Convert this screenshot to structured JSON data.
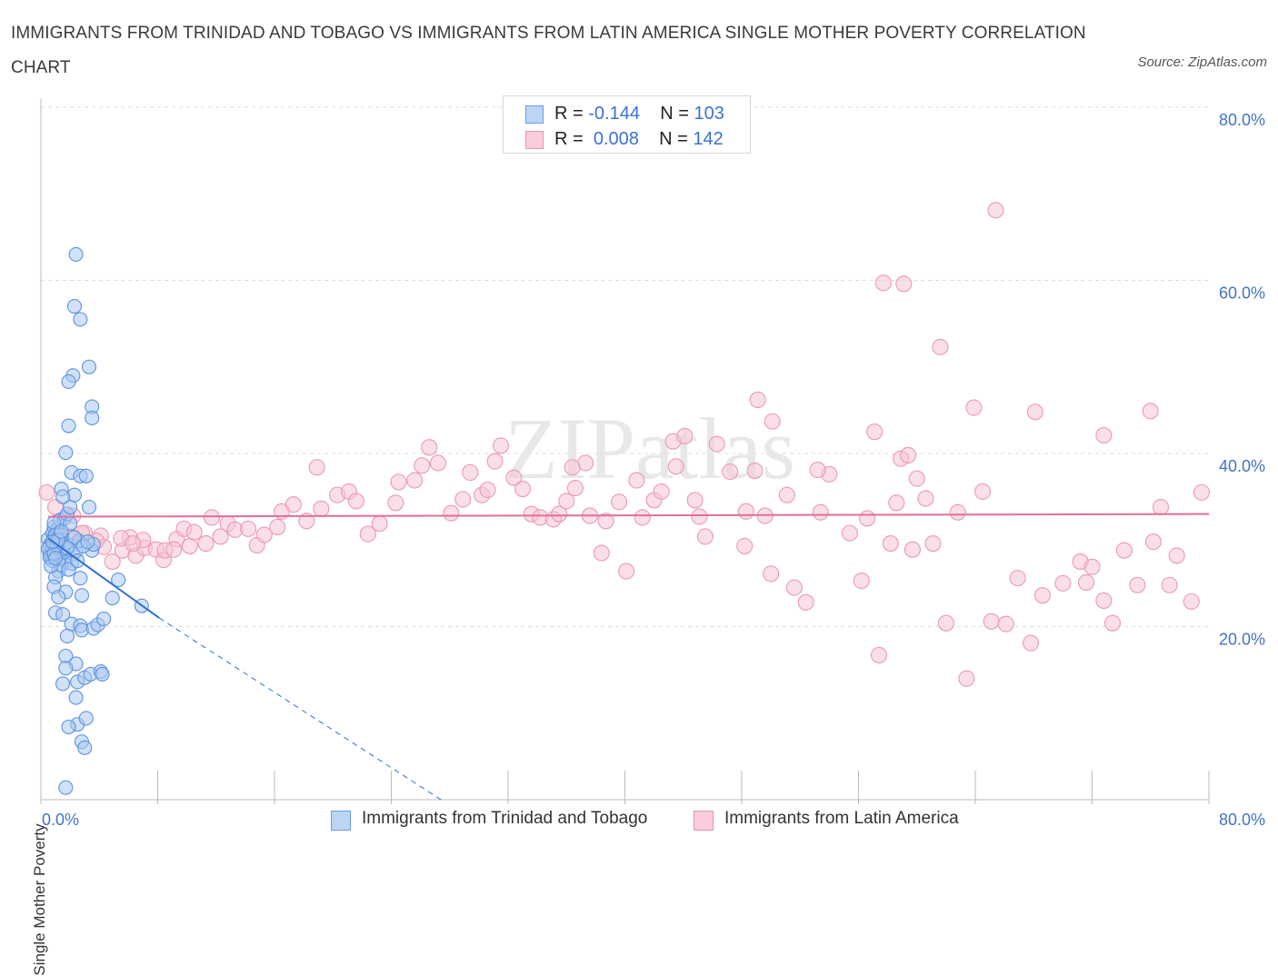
{
  "title": "IMMIGRANTS FROM TRINIDAD AND TOBAGO VS IMMIGRANTS FROM LATIN AMERICA SINGLE MOTHER POVERTY CORRELATION CHART",
  "source": "Source: ZipAtlas.com",
  "watermark": "ZIPatlas",
  "legend": {
    "rows": [
      {
        "r_label": "R =",
        "r_value": "-0.144",
        "n_label": "N =",
        "n_value": "103",
        "color": "#9dc3f5",
        "border": "#6a9de0"
      },
      {
        "r_label": "R =",
        "r_value": "0.008",
        "n_label": "N =",
        "n_value": "142",
        "color": "#f7bdd0",
        "border": "#e894b0"
      }
    ]
  },
  "colors": {
    "blue_fill": "#a9c9f3",
    "blue_stroke": "#5d93dc",
    "blue_line": "#2f6fd0",
    "pink_fill": "#f6c4d4",
    "pink_stroke": "#e99ab5",
    "pink_line": "#e0709a",
    "tick_text": "#4472c4",
    "grid": "#dddddd"
  },
  "chart_data": {
    "type": "scatter",
    "xlabel": "",
    "ylabel": "Single Mother Poverty",
    "xlim": [
      0,
      80
    ],
    "ylim": [
      0,
      80
    ],
    "x_tick_labels": [
      "0.0%",
      "80.0%"
    ],
    "y_ticks": [
      20,
      40,
      60,
      80
    ],
    "y_tick_labels": [
      "20.0%",
      "40.0%",
      "60.0%",
      "80.0%"
    ],
    "grid": true,
    "legend_position": "bottom",
    "series": [
      {
        "name": "Immigrants from Trinidad and Tobago",
        "color": "#a9c9f3",
        "trend": {
          "x0": 0.5,
          "y0": 30.2,
          "x1": 8.1,
          "y1": 21.0,
          "dashed_to_x": 27.4,
          "dashed_to_y": 0.0
        },
        "points": [
          [
            0.5,
            30.1
          ],
          [
            0.6,
            28.5
          ],
          [
            0.7,
            29.6
          ],
          [
            0.8,
            30.8
          ],
          [
            0.9,
            31.5
          ],
          [
            1.0,
            29.0
          ],
          [
            1.1,
            28.2
          ],
          [
            1.2,
            27.8
          ],
          [
            0.6,
            29.3
          ],
          [
            0.8,
            28.8
          ],
          [
            0.9,
            30.3
          ],
          [
            1.3,
            29.7
          ],
          [
            1.4,
            28.6
          ],
          [
            1.5,
            30.0
          ],
          [
            1.6,
            28.9
          ],
          [
            1.7,
            27.5
          ],
          [
            2.0,
            29.4
          ],
          [
            2.2,
            28.4
          ],
          [
            1.1,
            31.2
          ],
          [
            1.3,
            32.3
          ],
          [
            1.6,
            32.5
          ],
          [
            1.8,
            33.0
          ],
          [
            2.0,
            33.8
          ],
          [
            1.2,
            26.4
          ],
          [
            1.0,
            25.7
          ],
          [
            0.9,
            24.6
          ],
          [
            1.4,
            27.1
          ],
          [
            2.1,
            27.3
          ],
          [
            2.4,
            28.7
          ],
          [
            2.6,
            29.9
          ],
          [
            2.3,
            30.3
          ],
          [
            1.9,
            26.6
          ],
          [
            2.5,
            27.6
          ],
          [
            3.5,
            28.8
          ],
          [
            3.6,
            29.5
          ],
          [
            1.7,
            24.0
          ],
          [
            2.7,
            25.6
          ],
          [
            2.8,
            23.6
          ],
          [
            1.2,
            23.4
          ],
          [
            1.0,
            21.6
          ],
          [
            1.5,
            21.4
          ],
          [
            2.1,
            20.3
          ],
          [
            2.7,
            20.1
          ],
          [
            2.8,
            19.6
          ],
          [
            3.6,
            19.8
          ],
          [
            3.9,
            20.2
          ],
          [
            4.3,
            20.9
          ],
          [
            4.9,
            23.3
          ],
          [
            5.3,
            25.4
          ],
          [
            6.9,
            22.4
          ],
          [
            1.8,
            18.9
          ],
          [
            1.7,
            16.6
          ],
          [
            2.4,
            15.7
          ],
          [
            1.7,
            15.2
          ],
          [
            2.5,
            13.6
          ],
          [
            3.0,
            14.1
          ],
          [
            3.4,
            14.5
          ],
          [
            4.1,
            14.8
          ],
          [
            4.2,
            14.5
          ],
          [
            1.5,
            13.4
          ],
          [
            2.4,
            11.8
          ],
          [
            2.5,
            8.7
          ],
          [
            1.9,
            8.4
          ],
          [
            3.1,
            9.4
          ],
          [
            2.8,
            6.7
          ],
          [
            3.0,
            6.0
          ],
          [
            1.7,
            1.4
          ],
          [
            2.2,
            49.0
          ],
          [
            1.9,
            48.3
          ],
          [
            3.3,
            50.0
          ],
          [
            3.5,
            45.4
          ],
          [
            3.5,
            44.1
          ],
          [
            1.9,
            43.2
          ],
          [
            1.7,
            40.1
          ],
          [
            2.1,
            37.8
          ],
          [
            2.7,
            37.4
          ],
          [
            3.1,
            37.4
          ],
          [
            1.4,
            35.9
          ],
          [
            2.3,
            35.2
          ],
          [
            3.3,
            33.8
          ],
          [
            1.5,
            35.0
          ],
          [
            2.4,
            63.0
          ],
          [
            2.3,
            57.0
          ],
          [
            2.7,
            55.5
          ],
          [
            0.9,
            32.0
          ],
          [
            1.0,
            30.6
          ],
          [
            1.1,
            30.0
          ],
          [
            0.7,
            28.0
          ],
          [
            0.8,
            27.6
          ],
          [
            1.8,
            29.1
          ],
          [
            2.9,
            29.3
          ],
          [
            0.5,
            29.0
          ],
          [
            0.6,
            28.0
          ],
          [
            0.7,
            27.0
          ],
          [
            3.2,
            29.8
          ],
          [
            1.3,
            30.6
          ],
          [
            2.0,
            31.9
          ],
          [
            1.1,
            29.4
          ],
          [
            0.9,
            28.4
          ],
          [
            1.2,
            30.0
          ],
          [
            1.4,
            31.0
          ],
          [
            0.8,
            29.8
          ],
          [
            1.0,
            27.9
          ]
        ]
      },
      {
        "name": "Immigrants from Latin America",
        "color": "#f6c4d4",
        "trend": {
          "x0": 0.5,
          "y0": 32.7,
          "x1": 80.0,
          "y1": 33.0
        },
        "points": [
          [
            0.4,
            35.5
          ],
          [
            1.0,
            33.8
          ],
          [
            2.2,
            32.8
          ],
          [
            3.0,
            30.8
          ],
          [
            4.1,
            30.5
          ],
          [
            4.9,
            27.5
          ],
          [
            5.6,
            28.8
          ],
          [
            6.1,
            30.3
          ],
          [
            6.5,
            28.2
          ],
          [
            7.1,
            29.1
          ],
          [
            7.9,
            28.9
          ],
          [
            8.4,
            27.7
          ],
          [
            8.5,
            28.8
          ],
          [
            9.3,
            30.1
          ],
          [
            9.8,
            31.3
          ],
          [
            10.2,
            29.3
          ],
          [
            11.3,
            29.6
          ],
          [
            11.7,
            32.6
          ],
          [
            12.3,
            30.4
          ],
          [
            12.8,
            31.9
          ],
          [
            13.3,
            31.2
          ],
          [
            14.2,
            31.3
          ],
          [
            14.8,
            29.4
          ],
          [
            15.3,
            30.6
          ],
          [
            16.2,
            31.5
          ],
          [
            16.5,
            33.3
          ],
          [
            17.3,
            34.1
          ],
          [
            18.2,
            32.2
          ],
          [
            18.9,
            38.4
          ],
          [
            19.2,
            33.6
          ],
          [
            20.3,
            35.2
          ],
          [
            21.1,
            35.6
          ],
          [
            21.6,
            34.5
          ],
          [
            22.4,
            30.7
          ],
          [
            23.2,
            31.9
          ],
          [
            24.3,
            34.3
          ],
          [
            24.5,
            36.7
          ],
          [
            25.6,
            36.9
          ],
          [
            26.6,
            40.7
          ],
          [
            27.2,
            38.9
          ],
          [
            28.1,
            33.1
          ],
          [
            28.9,
            34.7
          ],
          [
            29.4,
            37.8
          ],
          [
            30.2,
            35.2
          ],
          [
            30.6,
            35.8
          ],
          [
            31.1,
            39.1
          ],
          [
            31.5,
            40.9
          ],
          [
            32.4,
            37.2
          ],
          [
            33.0,
            35.9
          ],
          [
            33.6,
            33.0
          ],
          [
            34.2,
            32.6
          ],
          [
            35.1,
            32.4
          ],
          [
            35.5,
            33.0
          ],
          [
            36.0,
            34.5
          ],
          [
            36.6,
            36.0
          ],
          [
            37.3,
            38.9
          ],
          [
            37.6,
            32.8
          ],
          [
            38.4,
            28.5
          ],
          [
            38.7,
            32.2
          ],
          [
            39.6,
            34.4
          ],
          [
            40.1,
            26.4
          ],
          [
            40.8,
            36.9
          ],
          [
            41.2,
            32.6
          ],
          [
            42.0,
            34.6
          ],
          [
            42.5,
            35.6
          ],
          [
            43.5,
            38.5
          ],
          [
            44.8,
            34.6
          ],
          [
            45.1,
            32.7
          ],
          [
            45.5,
            30.4
          ],
          [
            46.3,
            41.1
          ],
          [
            47.2,
            37.9
          ],
          [
            48.2,
            29.3
          ],
          [
            48.3,
            33.3
          ],
          [
            48.9,
            38.0
          ],
          [
            49.6,
            32.8
          ],
          [
            50.0,
            26.1
          ],
          [
            51.1,
            35.2
          ],
          [
            51.6,
            24.5
          ],
          [
            52.4,
            22.8
          ],
          [
            53.4,
            33.2
          ],
          [
            54.0,
            37.6
          ],
          [
            55.4,
            30.8
          ],
          [
            56.2,
            25.3
          ],
          [
            56.6,
            32.5
          ],
          [
            57.4,
            16.7
          ],
          [
            58.2,
            29.6
          ],
          [
            58.6,
            34.3
          ],
          [
            59.7,
            28.9
          ],
          [
            60.0,
            37.1
          ],
          [
            60.6,
            34.8
          ],
          [
            61.1,
            29.6
          ],
          [
            62.0,
            20.4
          ],
          [
            62.8,
            33.2
          ],
          [
            63.4,
            14.0
          ],
          [
            64.5,
            35.6
          ],
          [
            65.1,
            20.6
          ],
          [
            66.1,
            20.3
          ],
          [
            66.9,
            25.6
          ],
          [
            67.8,
            18.1
          ],
          [
            68.6,
            23.6
          ],
          [
            70.0,
            25.0
          ],
          [
            71.2,
            27.5
          ],
          [
            71.6,
            25.1
          ],
          [
            72.0,
            26.9
          ],
          [
            72.8,
            23.0
          ],
          [
            73.4,
            20.4
          ],
          [
            74.2,
            28.8
          ],
          [
            75.1,
            24.8
          ],
          [
            76.2,
            29.8
          ],
          [
            76.7,
            33.8
          ],
          [
            77.3,
            24.8
          ],
          [
            77.8,
            28.2
          ],
          [
            78.8,
            22.9
          ],
          [
            79.5,
            35.5
          ],
          [
            68.1,
            44.8
          ],
          [
            72.8,
            42.1
          ],
          [
            76.0,
            44.9
          ],
          [
            65.4,
            68.1
          ],
          [
            57.1,
            42.5
          ],
          [
            58.9,
            39.4
          ],
          [
            59.4,
            39.8
          ],
          [
            49.1,
            46.2
          ],
          [
            53.2,
            38.1
          ],
          [
            50.1,
            43.7
          ],
          [
            57.7,
            59.7
          ],
          [
            59.1,
            59.6
          ],
          [
            61.6,
            52.3
          ],
          [
            63.9,
            45.3
          ],
          [
            43.3,
            41.4
          ],
          [
            44.1,
            42.0
          ],
          [
            36.4,
            38.4
          ],
          [
            26.1,
            38.6
          ],
          [
            5.5,
            30.2
          ],
          [
            7.0,
            30.0
          ],
          [
            2.8,
            30.8
          ],
          [
            4.3,
            29.2
          ],
          [
            2.0,
            30.4
          ],
          [
            3.8,
            29.9
          ],
          [
            6.3,
            29.6
          ],
          [
            9.1,
            28.9
          ],
          [
            10.5,
            30.9
          ]
        ]
      }
    ]
  }
}
